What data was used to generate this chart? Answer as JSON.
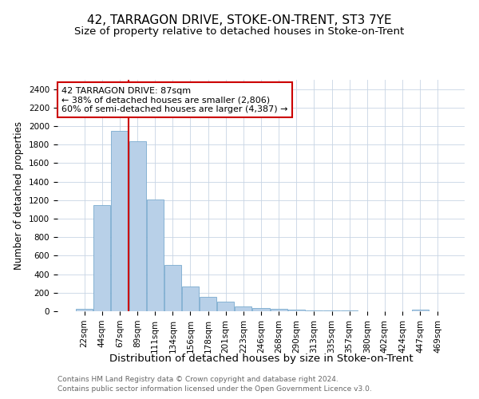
{
  "title": "42, TARRAGON DRIVE, STOKE-ON-TRENT, ST3 7YE",
  "subtitle": "Size of property relative to detached houses in Stoke-on-Trent",
  "xlabel": "Distribution of detached houses by size in Stoke-on-Trent",
  "ylabel": "Number of detached properties",
  "footnote1": "Contains HM Land Registry data © Crown copyright and database right 2024.",
  "footnote2": "Contains public sector information licensed under the Open Government Licence v3.0.",
  "annotation_line1": "42 TARRAGON DRIVE: 87sqm",
  "annotation_line2": "← 38% of detached houses are smaller (2,806)",
  "annotation_line3": "60% of semi-detached houses are larger (4,387) →",
  "bar_categories": [
    "22sqm",
    "44sqm",
    "67sqm",
    "89sqm",
    "111sqm",
    "134sqm",
    "156sqm",
    "178sqm",
    "201sqm",
    "223sqm",
    "246sqm",
    "268sqm",
    "290sqm",
    "313sqm",
    "335sqm",
    "357sqm",
    "380sqm",
    "402sqm",
    "424sqm",
    "447sqm",
    "469sqm"
  ],
  "bar_values": [
    28,
    1150,
    1950,
    1840,
    1210,
    500,
    270,
    155,
    100,
    55,
    35,
    25,
    15,
    10,
    8,
    5,
    4,
    3,
    2,
    18,
    1
  ],
  "bar_color": "#b8d0e8",
  "bar_edge_color": "#7aabcf",
  "vline_color": "#cc0000",
  "vline_x_index": 2,
  "ylim": [
    0,
    2500
  ],
  "yticks": [
    0,
    200,
    400,
    600,
    800,
    1000,
    1200,
    1400,
    1600,
    1800,
    2000,
    2200,
    2400
  ],
  "background_color": "#ffffff",
  "grid_color": "#c8d4e4",
  "title_fontsize": 11,
  "subtitle_fontsize": 9.5,
  "xlabel_fontsize": 9.5,
  "ylabel_fontsize": 8.5,
  "tick_fontsize": 7.5,
  "annotation_fontsize": 8,
  "footnote_fontsize": 6.5
}
